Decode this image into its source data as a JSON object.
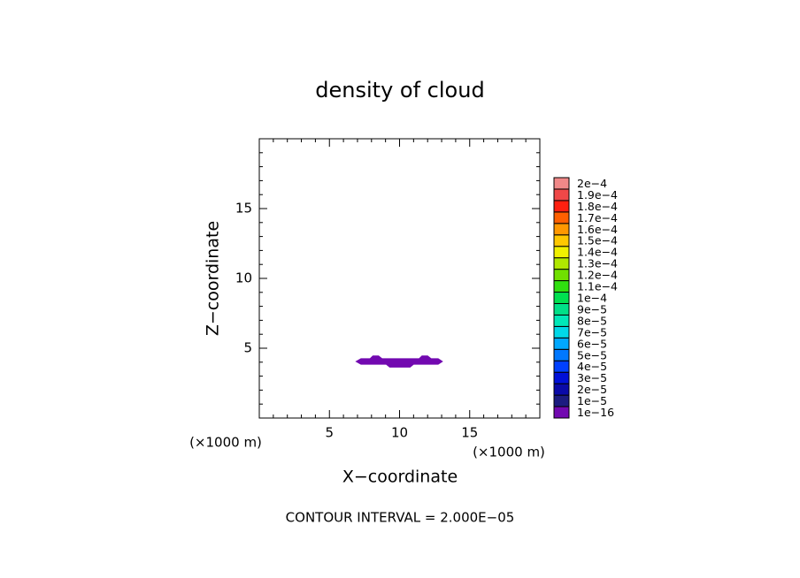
{
  "chart_data": {
    "type": "contour",
    "title": "density of cloud",
    "xlabel": "X−coordinate",
    "ylabel": "Z−coordinate",
    "xunit": "(×1000 m)",
    "yunit": "(×1000 m)",
    "note": "CONTOUR INTERVAL = 2.000E−05",
    "xlim": [
      0,
      20
    ],
    "ylim": [
      0,
      20
    ],
    "xticks": [
      5,
      10,
      15
    ],
    "yticks": [
      5,
      10,
      15
    ],
    "xminorticks": [
      1,
      2,
      3,
      4,
      6,
      7,
      8,
      9,
      11,
      12,
      13,
      14,
      16,
      17,
      18,
      19
    ],
    "yminorticks": [
      1,
      2,
      3,
      4,
      6,
      7,
      8,
      9,
      11,
      12,
      13,
      14,
      16,
      17,
      18,
      19
    ],
    "levels": [
      {
        "value": 1e-16,
        "label": "1e−16",
        "color": "#7209b0"
      },
      {
        "value": 1e-05,
        "label": "1e−5",
        "color": "#1c1c80"
      },
      {
        "value": 2e-05,
        "label": "2e−5",
        "color": "#0a0aa8"
      },
      {
        "value": 3e-05,
        "label": "3e−5",
        "color": "#0010d8"
      },
      {
        "value": 4e-05,
        "label": "4e−5",
        "color": "#0040ff"
      },
      {
        "value": 5e-05,
        "label": "5e−5",
        "color": "#0078ff"
      },
      {
        "value": 6e-05,
        "label": "6e−5",
        "color": "#00a8ff"
      },
      {
        "value": 7e-05,
        "label": "7e−5",
        "color": "#00d8e8"
      },
      {
        "value": 8e-05,
        "label": "8e−5",
        "color": "#00e8b8"
      },
      {
        "value": 9e-05,
        "label": "9e−5",
        "color": "#00e088"
      },
      {
        "value": 0.0001,
        "label": "1e−4",
        "color": "#00e050"
      },
      {
        "value": 0.00011,
        "label": "1.1e−4",
        "color": "#30e010"
      },
      {
        "value": 0.00012,
        "label": "1.2e−4",
        "color": "#70e000"
      },
      {
        "value": 0.00013,
        "label": "1.3e−4",
        "color": "#b0e800"
      },
      {
        "value": 0.00014,
        "label": "1.4e−4",
        "color": "#f0f000"
      },
      {
        "value": 0.00015,
        "label": "1.5e−4",
        "color": "#ffc800"
      },
      {
        "value": 0.00016,
        "label": "1.6e−4",
        "color": "#ff9800"
      },
      {
        "value": 0.00017,
        "label": "1.7e−4",
        "color": "#ff6000"
      },
      {
        "value": 0.00018,
        "label": "1.8e−4",
        "color": "#ff2010"
      },
      {
        "value": 0.00019,
        "label": "1.9e−4",
        "color": "#f04848"
      },
      {
        "value": 0.0002,
        "label": "2e−4",
        "color": "#f08888"
      }
    ],
    "contours": [
      {
        "x": [
          6.9,
          7.25,
          7.9,
          8.1,
          8.5,
          8.75,
          11.4,
          11.6,
          12.0,
          12.25,
          12.75,
          13.05,
          12.75,
          11.0,
          10.75,
          9.3,
          9.05,
          7.25
        ],
        "y": [
          4.05,
          4.25,
          4.25,
          4.45,
          4.45,
          4.25,
          4.25,
          4.45,
          4.45,
          4.25,
          4.25,
          4.05,
          3.85,
          3.85,
          3.65,
          3.65,
          3.85,
          3.85
        ]
      }
    ]
  }
}
